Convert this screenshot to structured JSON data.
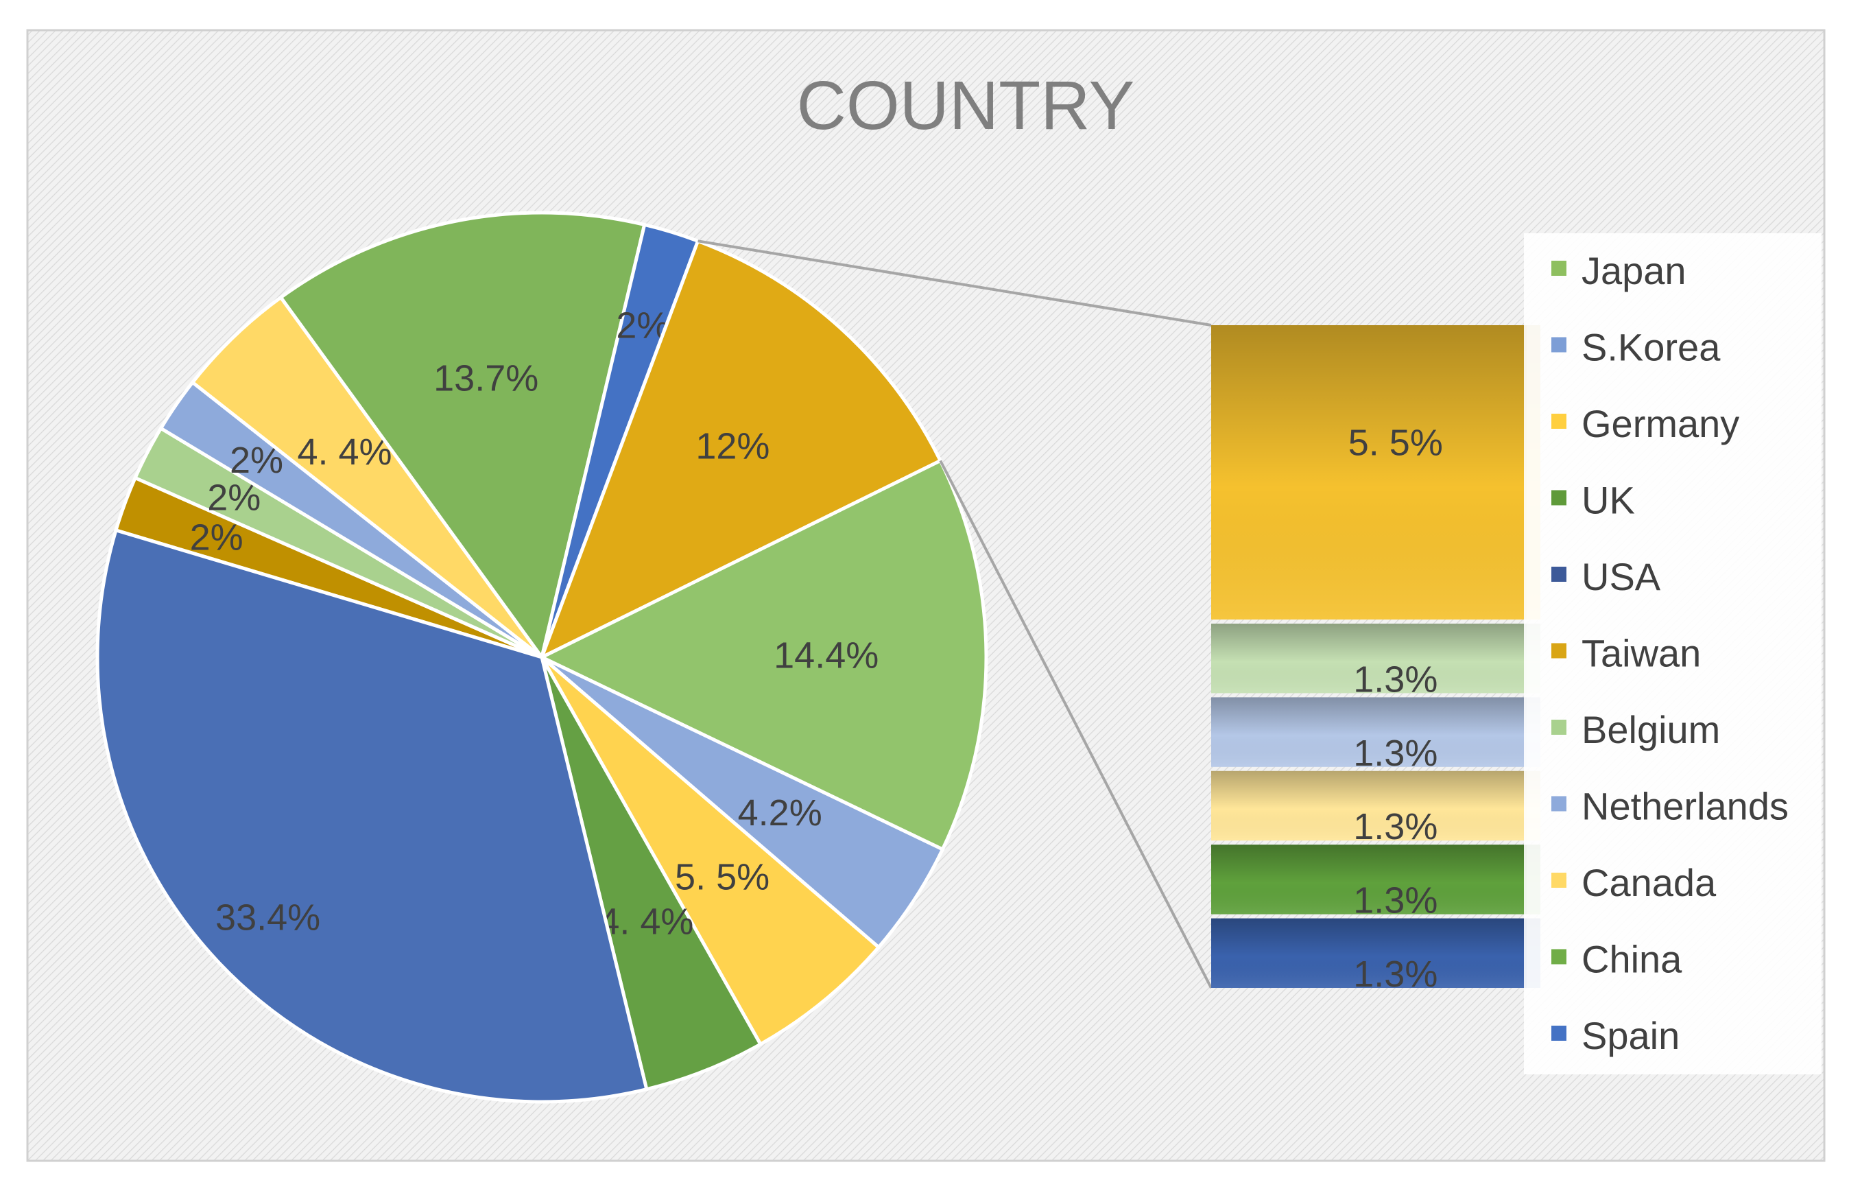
{
  "chart_data": {
    "type": "pie",
    "subtype": "bar-of-pie",
    "title": "COUNTRY",
    "legend_position": "right",
    "legend": [
      {
        "name": "Japan",
        "color": "#8ebf5f"
      },
      {
        "name": "S.Korea",
        "color": "#7d9ed6"
      },
      {
        "name": "Germany",
        "color": "#ffcf3f"
      },
      {
        "name": "UK",
        "color": "#5f9a3a"
      },
      {
        "name": "USA",
        "color": "#3d5a99"
      },
      {
        "name": "Taiwan",
        "color": "#d9a515"
      },
      {
        "name": "Belgium",
        "color": "#a9d18e"
      },
      {
        "name": "Netherlands",
        "color": "#8eaadb"
      },
      {
        "name": "Canada",
        "color": "#ffd966"
      },
      {
        "name": "China",
        "color": "#70ad47"
      },
      {
        "name": "Spain",
        "color": "#4472c4"
      }
    ],
    "pie_slices": [
      {
        "label": "2%",
        "value": 2.0,
        "color": "#c09000"
      },
      {
        "label": "2%",
        "value": 2.0,
        "color": "#a9d18e"
      },
      {
        "label": "2%",
        "value": 2.0,
        "color": "#8eaadb"
      },
      {
        "label": "4. 4%",
        "value": 4.4,
        "color": "#ffd966"
      },
      {
        "label": "13.7%",
        "value": 13.7,
        "color": "#80b55a"
      },
      {
        "label": "2%",
        "value": 2.0,
        "color": "#4472c4"
      },
      {
        "label": "12%",
        "value": 12.0,
        "color": "#e0aa15",
        "other": true
      },
      {
        "label": "14.4%",
        "value": 14.4,
        "color": "#92c46c"
      },
      {
        "label": "4.2%",
        "value": 4.2,
        "color": "#8eaadb"
      },
      {
        "label": "5. 5%",
        "value": 5.5,
        "color": "#ffd34f"
      },
      {
        "label": "4. 4%",
        "value": 4.4,
        "color": "#65a044"
      },
      {
        "label": "33.4%",
        "value": 33.4,
        "color": "#4a6fb5"
      }
    ],
    "bar_segments": [
      {
        "label": "5. 5%",
        "value": 5.5,
        "color": "#f5c12e"
      },
      {
        "label": "1.3%",
        "value": 1.3,
        "color": "#c5e0b3"
      },
      {
        "label": "1.3%",
        "value": 1.3,
        "color": "#b4c7e7"
      },
      {
        "label": "1.3%",
        "value": 1.3,
        "color": "#ffe699"
      },
      {
        "label": "1.3%",
        "value": 1.3,
        "color": "#5fa13c"
      },
      {
        "label": "1.3%",
        "value": 1.3,
        "color": "#3a62ad"
      }
    ]
  }
}
